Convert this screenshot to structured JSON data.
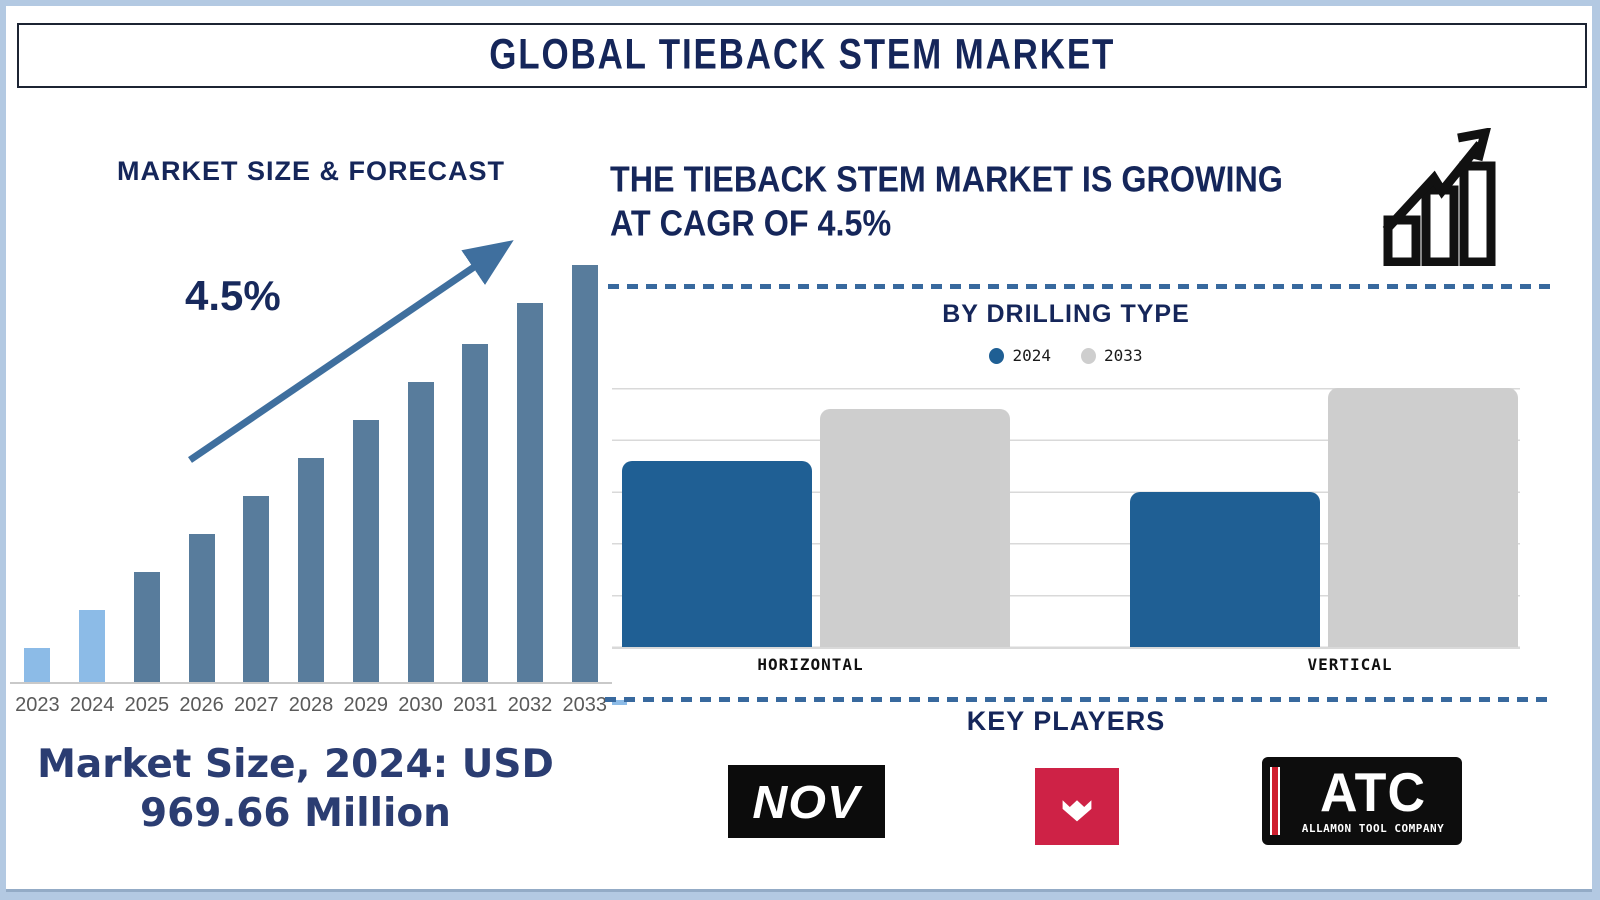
{
  "header": {
    "title": "GLOBAL TIEBACK STEM MARKET"
  },
  "growth_statement": {
    "line1": "THE TIEBACK STEM MARKET IS GROWING",
    "line2": "AT CAGR OF 4.5%"
  },
  "market_size_callout": {
    "line1": "Market Size, 2024: USD",
    "line2": "969.66 Million"
  },
  "key_players": {
    "title": "KEY PLAYERS",
    "nov_label": "NOV",
    "atc_abbr": "ATC",
    "atc_subtitle": "ALLAMON TOOL COMPANY"
  },
  "colors": {
    "frame": "#b3c9e2",
    "navy": "#15265a",
    "bar_light": "#8cbbe7",
    "bar_dark": "#587c9c",
    "arrow": "#3f6f9e",
    "dashed_divider": "#38699e",
    "gridline": "#d9d9d9",
    "year_label": "#5a5a5a",
    "callout_text": "#2b3d72",
    "red_logo": "#ce2246"
  },
  "chart_data": [
    {
      "id": "market_size_forecast",
      "type": "bar",
      "title": "MARKET SIZE & FORECAST",
      "annotation": "4.5%",
      "categories": [
        "2023",
        "2024",
        "2025",
        "2026",
        "2027",
        "2028",
        "2029",
        "2030",
        "2031",
        "2032",
        "2033"
      ],
      "values": [
        34,
        72,
        110,
        148,
        186,
        224,
        262,
        300,
        338,
        379,
        417
      ],
      "value_unit": "relative bar height in px (source shows no y-axis)",
      "highlight_first_n": 2,
      "ylim": [
        0,
        417
      ],
      "grid": false,
      "legend": false,
      "annotation_note": "upward trend arrow labeled 4.5%"
    },
    {
      "id": "by_drilling_type",
      "type": "bar",
      "subtype": "grouped",
      "title": "BY DRILLING TYPE",
      "categories": [
        "HORIZONTAL",
        "VERTICAL"
      ],
      "series": [
        {
          "name": "2024",
          "color": "#1f5f94",
          "values": [
            36,
            30
          ]
        },
        {
          "name": "2033",
          "color": "#cecece",
          "values": [
            46,
            50
          ]
        }
      ],
      "axis_max": 50,
      "gridline_step": 10,
      "grid": true,
      "legend_position": "top",
      "value_unit": "relative units (source shows no y-axis labels)"
    }
  ]
}
